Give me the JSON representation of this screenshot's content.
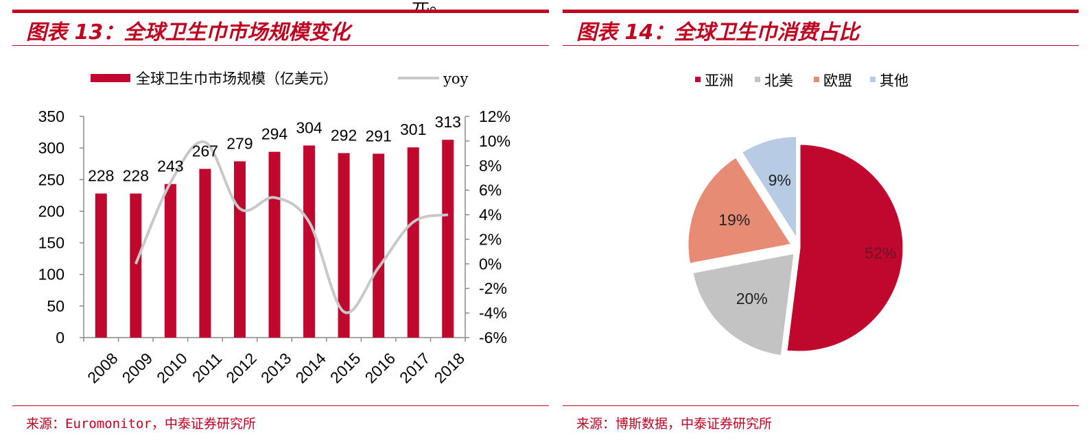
{
  "top_fragment": "元。",
  "left": {
    "title": "图表 13：全球卫生巾市场规模变化",
    "source": "来源：Euromonitor，中泰证券研究所"
  },
  "right": {
    "title": "图表 14：全球卫生巾消费占比",
    "source": "来源：博斯数据，中泰证券研究所"
  },
  "chart_data": [
    {
      "type": "bar",
      "categories": [
        "2008",
        "2009",
        "2010",
        "2011",
        "2012",
        "2013",
        "2014",
        "2015",
        "2016",
        "2017",
        "2018"
      ],
      "series": [
        {
          "name": "全球卫生巾市场规模（亿美元）",
          "type": "bar",
          "axis": "left",
          "values": [
            228,
            228,
            243,
            267,
            279,
            294,
            304,
            292,
            291,
            301,
            313
          ]
        },
        {
          "name": "yoy",
          "type": "line",
          "axis": "right",
          "values": [
            null,
            0.0,
            6.6,
            9.9,
            4.5,
            5.4,
            3.4,
            -3.9,
            -0.3,
            3.4,
            4.0
          ]
        }
      ],
      "left_axis": {
        "min": 0,
        "max": 350,
        "ticks": [
          "0",
          "50",
          "100",
          "150",
          "200",
          "250",
          "300",
          "350"
        ]
      },
      "right_axis": {
        "min": -6,
        "max": 12,
        "ticks": [
          "-6%",
          "-4%",
          "-2%",
          "0%",
          "2%",
          "4%",
          "6%",
          "8%",
          "10%",
          "12%"
        ]
      },
      "bar_labels": [
        "228",
        "228",
        "243",
        "267",
        "279",
        "294",
        "304",
        "292",
        "291",
        "301",
        "313"
      ],
      "legend_position": "top",
      "colors": {
        "bar": "#c0072e",
        "line": "#c8c8c8"
      }
    },
    {
      "type": "pie",
      "labels": [
        "亚洲",
        "北美",
        "欧盟",
        "其他"
      ],
      "values": [
        52,
        20,
        19,
        9
      ],
      "value_labels": [
        "52%",
        "20%",
        "19%",
        "9%"
      ],
      "legend_position": "top",
      "colors": [
        "#c0072e",
        "#c3c3c3",
        "#e88b74",
        "#b8cbe4"
      ]
    }
  ]
}
